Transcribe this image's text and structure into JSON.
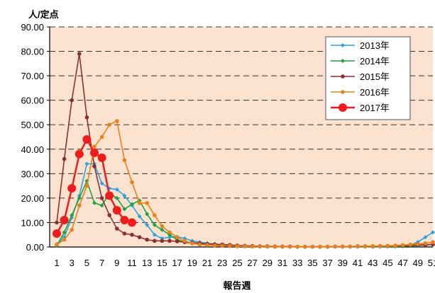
{
  "chart_data": {
    "type": "line",
    "ylabel": "人/定点",
    "xlabel": "報告週",
    "ylim": [
      0,
      90
    ],
    "yticks": [
      "0.00",
      "10.00",
      "20.00",
      "30.00",
      "40.00",
      "50.00",
      "60.00",
      "70.00",
      "80.00",
      "90.00"
    ],
    "xlim": [
      1,
      51
    ],
    "xticks": [
      "1",
      "3",
      "5",
      "7",
      "9",
      "11",
      "13",
      "15",
      "17",
      "19",
      "21",
      "23",
      "25",
      "27",
      "29",
      "31",
      "33",
      "35",
      "37",
      "39",
      "41",
      "43",
      "45",
      "47",
      "49",
      "51"
    ],
    "grid": "horizontal-dashed",
    "legend_position": "top-right",
    "series": [
      {
        "name": "2013年",
        "color": "#2aa3e0",
        "marker": "diamond",
        "x": [
          1,
          2,
          3,
          4,
          5,
          6,
          7,
          8,
          9,
          10,
          11,
          12,
          13,
          14,
          15,
          16,
          17,
          18,
          19,
          20,
          21,
          22,
          23,
          24,
          25,
          26,
          27,
          28,
          29,
          30,
          31,
          32,
          33,
          34,
          35,
          36,
          37,
          38,
          39,
          40,
          41,
          42,
          43,
          44,
          45,
          46,
          47,
          48,
          49,
          50,
          51
        ],
        "y": [
          1.2,
          4,
          12,
          21,
          34,
          34,
          26,
          24,
          23.5,
          21,
          17,
          12.5,
          9,
          5,
          3.5,
          4,
          4.2,
          3.5,
          2.5,
          2,
          1.5,
          1.2,
          1,
          0.8,
          0.6,
          0.5,
          0.4,
          0.3,
          0.2,
          0.2,
          0.2,
          0.1,
          0.1,
          0.1,
          0.1,
          0.1,
          0.1,
          0.1,
          0.1,
          0.2,
          0.2,
          0.2,
          0.3,
          0.3,
          0.4,
          0.5,
          0.6,
          0.8,
          2,
          4,
          6
        ]
      },
      {
        "name": "2014年",
        "color": "#1aa33a",
        "marker": "diamond",
        "x": [
          1,
          2,
          3,
          4,
          5,
          6,
          7,
          8,
          9,
          10,
          11,
          12,
          13,
          14,
          15,
          16,
          17,
          18,
          19,
          20,
          21,
          22,
          23,
          24,
          25,
          26,
          27,
          28,
          29,
          30,
          31,
          32,
          33,
          34,
          35,
          36,
          37,
          38,
          39,
          40,
          41,
          42,
          43,
          44,
          45,
          46,
          47,
          48,
          49,
          50,
          51
        ],
        "y": [
          0.5,
          6,
          13,
          20,
          27,
          18,
          17,
          22,
          20,
          15.5,
          17.5,
          19,
          13.5,
          9,
          7,
          5,
          3,
          2,
          1.5,
          1.2,
          1,
          0.8,
          0.6,
          0.4,
          0.3,
          0.2,
          0.2,
          0.1,
          0.1,
          0.1,
          0.1,
          0.1,
          0.1,
          0.1,
          0.1,
          0.1,
          0.1,
          0.1,
          0.1,
          0.1,
          0.1,
          0.1,
          0.1,
          0.1,
          0.2,
          0.2,
          0.3,
          0.4,
          0.6,
          0.8,
          1
        ]
      },
      {
        "name": "2015年",
        "color": "#8b3030",
        "marker": "circle",
        "x": [
          1,
          2,
          3,
          4,
          5,
          6,
          7,
          8,
          9,
          10,
          11,
          12,
          13,
          14,
          15,
          16,
          17,
          18,
          19,
          20,
          21,
          22,
          23,
          24,
          25,
          26,
          27,
          28,
          29,
          30,
          31,
          32,
          33,
          34,
          35,
          36,
          37,
          38,
          39,
          40,
          41,
          42,
          43,
          44,
          45,
          46,
          47,
          48,
          49,
          50,
          51
        ],
        "y": [
          10,
          36,
          60,
          79,
          53,
          33,
          20,
          13,
          7.5,
          5.5,
          5,
          4,
          3,
          2.5,
          2.5,
          2.5,
          2.3,
          2,
          1.8,
          1.5,
          1.3,
          1.1,
          1,
          0.8,
          0.6,
          0.5,
          0.4,
          0.3,
          0.3,
          0.2,
          0.2,
          0.2,
          0.1,
          0.1,
          0.1,
          0.1,
          0.1,
          0.2,
          0.2,
          0.2,
          0.3,
          0.3,
          0.3,
          0.4,
          0.4,
          0.5,
          0.6,
          0.7,
          0.8,
          0.9,
          1
        ]
      },
      {
        "name": "2016年",
        "color": "#e8801c",
        "marker": "circle",
        "x": [
          1,
          2,
          3,
          4,
          5,
          6,
          7,
          8,
          9,
          10,
          11,
          12,
          13,
          14,
          15,
          16,
          17,
          18,
          19,
          20,
          21,
          22,
          23,
          24,
          25,
          26,
          27,
          28,
          29,
          30,
          31,
          32,
          33,
          34,
          35,
          36,
          37,
          38,
          39,
          40,
          41,
          42,
          43,
          44,
          45,
          46,
          47,
          48,
          49,
          50,
          51
        ],
        "y": [
          1,
          3,
          7,
          17,
          25,
          41,
          45,
          50,
          51.5,
          35.5,
          26.5,
          18,
          18,
          13,
          8.5,
          6,
          4,
          2.5,
          1.5,
          1,
          0.8,
          0.6,
          0.5,
          0.4,
          0.3,
          0.3,
          0.2,
          0.2,
          0.2,
          0.1,
          0.1,
          0.1,
          0.1,
          0.1,
          0.1,
          0.1,
          0.1,
          0.2,
          0.2,
          0.2,
          0.3,
          0.3,
          0.4,
          0.4,
          0.5,
          0.6,
          0.8,
          1,
          1.2,
          1.5,
          2
        ]
      },
      {
        "name": "2017年",
        "color": "#ee1c1c",
        "marker": "bigcircle",
        "x": [
          1,
          2,
          3,
          4,
          5,
          6,
          7,
          8,
          9,
          10,
          11
        ],
        "y": [
          5.5,
          11,
          24,
          38,
          44,
          38.5,
          36.5,
          21,
          15,
          11,
          10
        ]
      }
    ]
  }
}
